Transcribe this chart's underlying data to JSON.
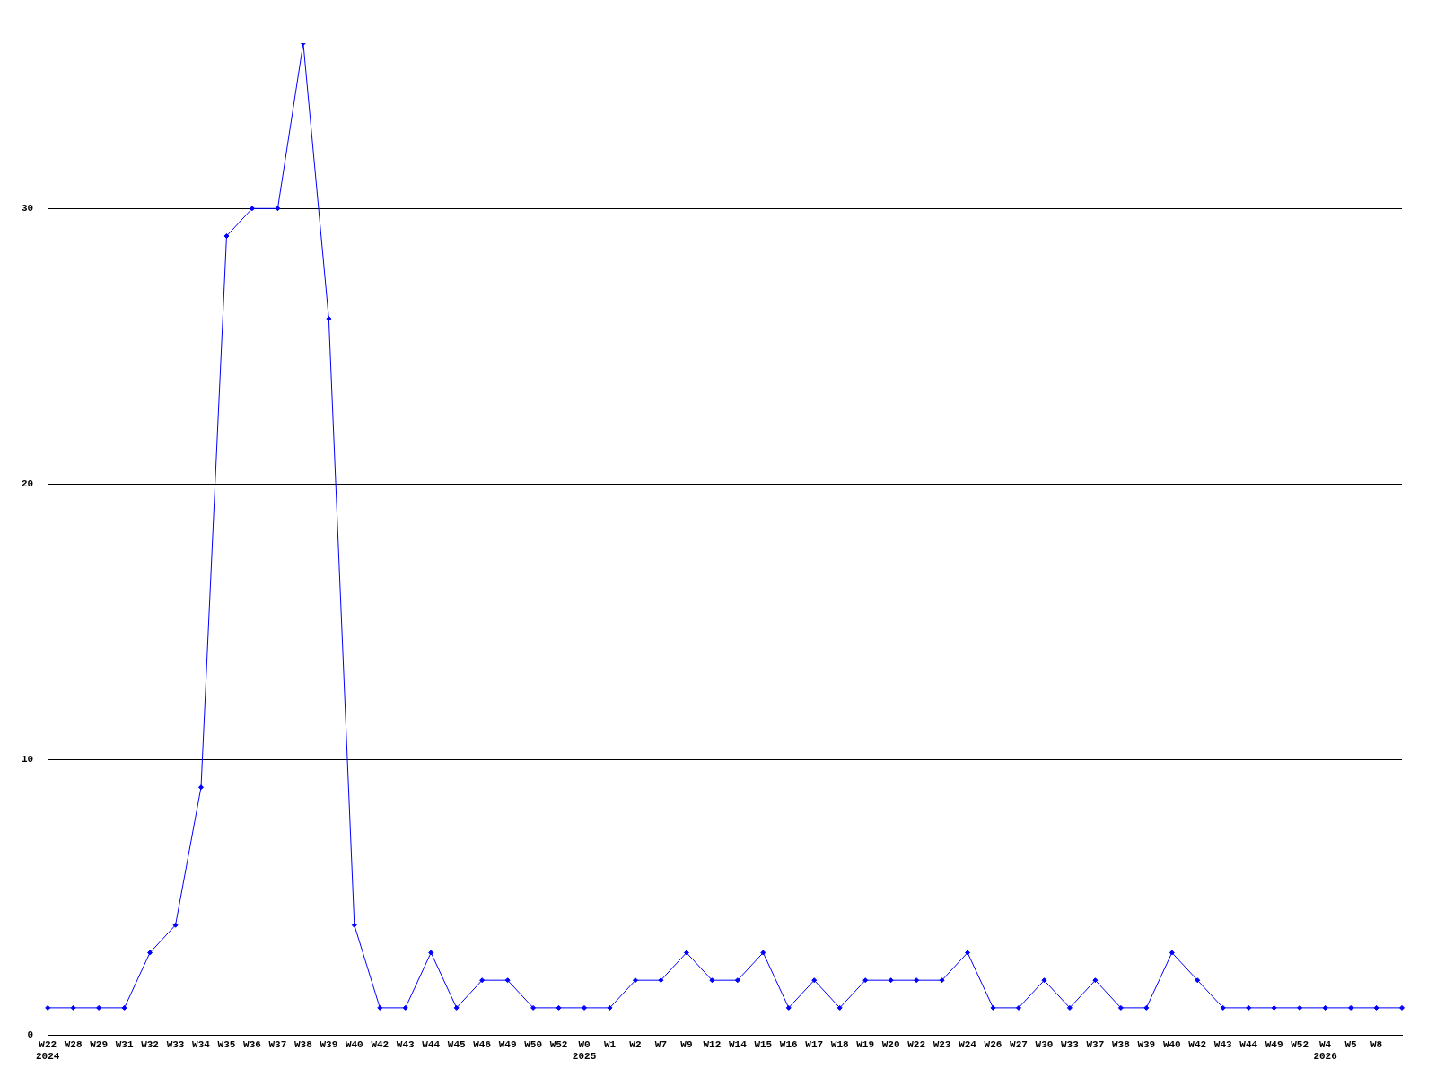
{
  "chart_data": {
    "type": "line",
    "categories": [
      "W22\n2024",
      "W28",
      "W29",
      "W31",
      "W32",
      "W33",
      "W34",
      "W35",
      "W36",
      "W37",
      "W38",
      "W39",
      "W40",
      "W42",
      "W43",
      "W44",
      "W45",
      "W46",
      "W49",
      "W50",
      "W52",
      "W0\n2025",
      "W1",
      "W2",
      "W7",
      "W9",
      "W12",
      "W14",
      "W15",
      "W16",
      "W17",
      "W18",
      "W19",
      "W20",
      "W22",
      "W23",
      "W24",
      "W26",
      "W27",
      "W30",
      "W33",
      "W37",
      "W38",
      "W39",
      "W40",
      "W42",
      "W43",
      "W44",
      "W49",
      "W52",
      "W4\n2026",
      "W5",
      "W8",
      null
    ],
    "series": [
      {
        "color": "#0000ff",
        "values": [
          1,
          1,
          1,
          1,
          3,
          4,
          9,
          29,
          30,
          30,
          36,
          26,
          4,
          1,
          1,
          3,
          1,
          2,
          2,
          1,
          1,
          1,
          1,
          2,
          2,
          3,
          2,
          2,
          3,
          1,
          2,
          1,
          2,
          2,
          2,
          2,
          3,
          1,
          1,
          2,
          1,
          2,
          1,
          1,
          3,
          2,
          1,
          1,
          1,
          1,
          1,
          1,
          1,
          1
        ]
      }
    ],
    "ylim": [
      0,
      36
    ],
    "yticks": [
      0,
      10,
      20,
      30
    ],
    "grid": "y",
    "legend": false,
    "marker": "diamond",
    "line_style": "solid"
  }
}
